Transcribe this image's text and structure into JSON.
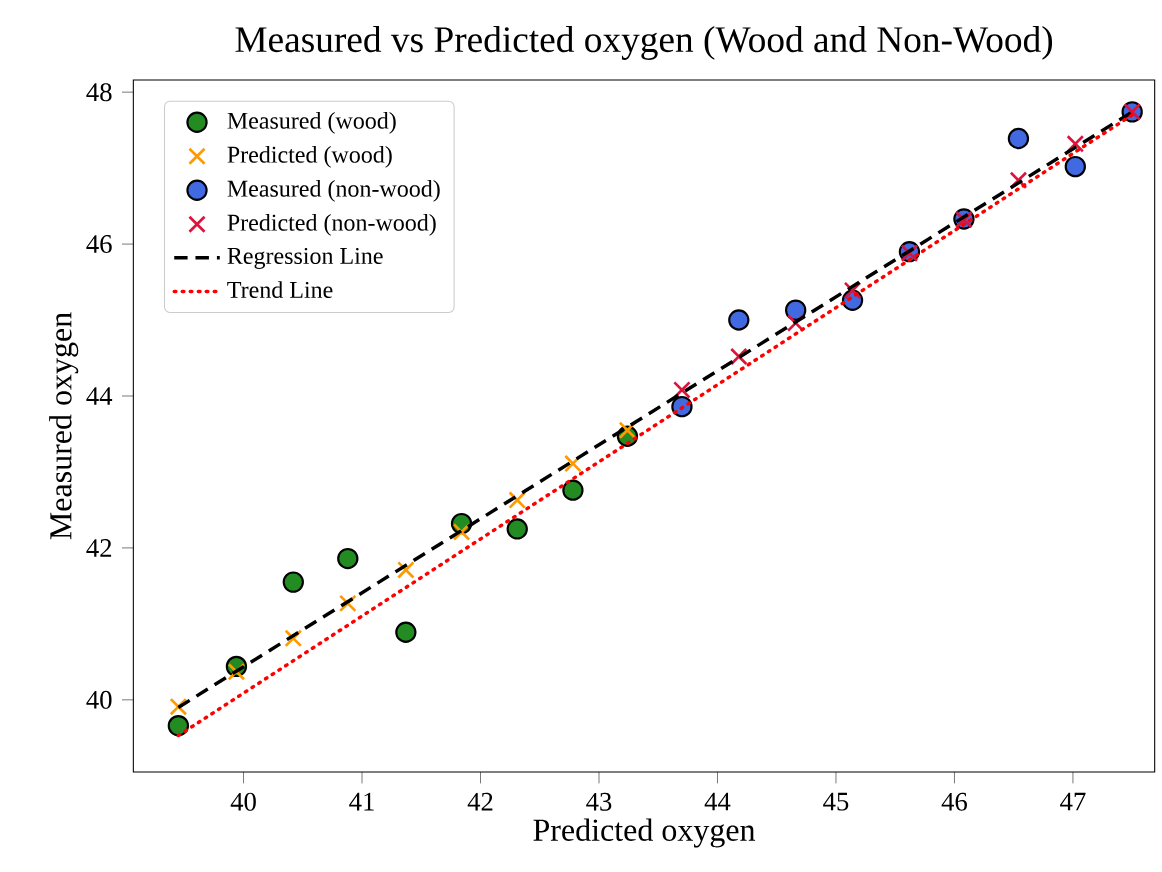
{
  "chart_data": {
    "type": "scatter",
    "title": "Measured vs Predicted oxygen (Wood and Non-Wood)",
    "xlabel": "Predicted oxygen",
    "ylabel": "Measured oxygen",
    "xlim": [
      39.07,
      47.69
    ],
    "ylim": [
      39.05,
      48.16
    ],
    "xticks": [
      40,
      41,
      42,
      43,
      44,
      45,
      46,
      47
    ],
    "yticks": [
      40,
      42,
      44,
      46,
      48
    ],
    "legend": "top left",
    "series": [
      {
        "name": "Measured (wood)",
        "type": "scatter",
        "marker": "circle",
        "color": "#228b22",
        "x": [
          39.45,
          39.94,
          40.42,
          40.88,
          41.37,
          41.84,
          42.31,
          42.78,
          43.24
        ],
        "values": [
          39.66,
          40.44,
          41.55,
          41.86,
          40.89,
          42.32,
          42.25,
          42.76,
          43.47
        ]
      },
      {
        "name": "Predicted (wood)",
        "type": "scatter",
        "marker": "cross",
        "color": "#ff9900",
        "x": [
          39.45,
          39.94,
          40.42,
          40.88,
          41.37,
          41.84,
          42.31,
          42.78,
          43.24
        ],
        "values": [
          39.91,
          40.37,
          40.81,
          41.27,
          41.71,
          42.21,
          42.63,
          43.11,
          43.55
        ]
      },
      {
        "name": "Measured (non-wood)",
        "type": "scatter",
        "marker": "circle",
        "color": "#4169e1",
        "x": [
          43.7,
          44.18,
          44.66,
          45.14,
          45.62,
          46.08,
          46.54,
          47.02,
          47.5
        ],
        "values": [
          43.86,
          45.0,
          45.13,
          45.26,
          45.9,
          46.33,
          47.39,
          47.02,
          47.74
        ]
      },
      {
        "name": "Predicted (non-wood)",
        "type": "scatter",
        "marker": "cross",
        "color": "#dc143c",
        "x": [
          43.7,
          44.18,
          44.66,
          45.14,
          45.62,
          46.08,
          46.54,
          47.02,
          47.5
        ],
        "values": [
          44.08,
          44.52,
          44.96,
          45.39,
          45.88,
          46.32,
          46.84,
          47.32,
          47.74
        ]
      },
      {
        "name": "Regression Line",
        "type": "line",
        "line_style": "dashed",
        "color": "#000000",
        "x": [
          39.45,
          47.5
        ],
        "values": [
          39.9,
          47.74
        ]
      },
      {
        "name": "Trend Line",
        "type": "line",
        "line_style": "dotted",
        "color": "#ff0000",
        "x": [
          39.45,
          47.5
        ],
        "values": [
          39.53,
          47.7
        ]
      }
    ]
  }
}
